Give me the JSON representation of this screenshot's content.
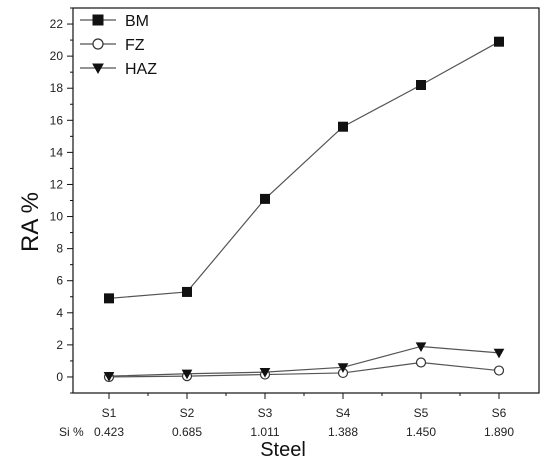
{
  "chart_data": {
    "type": "line",
    "title": "",
    "xlabel": "Steel",
    "ylabel": "RA %",
    "categories": [
      "S1",
      "S2",
      "S3",
      "S4",
      "S5",
      "S6"
    ],
    "si_label": "Si %",
    "si_values": [
      "0.423",
      "0.685",
      "1.011",
      "1.388",
      "1.450",
      "1.890"
    ],
    "ylim": [
      -1,
      23
    ],
    "yticks": [
      0,
      2,
      4,
      6,
      8,
      10,
      12,
      14,
      16,
      18,
      20,
      22
    ],
    "grid": false,
    "legend_position": "top-left",
    "series": [
      {
        "name": "BM",
        "marker": "filled-square",
        "values": [
          4.9,
          5.3,
          11.1,
          15.6,
          18.2,
          20.9
        ]
      },
      {
        "name": "FZ",
        "marker": "open-circle",
        "values": [
          0.0,
          0.05,
          0.15,
          0.25,
          0.9,
          0.4
        ]
      },
      {
        "name": "HAZ",
        "marker": "filled-down-triangle",
        "values": [
          0.05,
          0.2,
          0.3,
          0.6,
          1.9,
          1.5
        ]
      }
    ]
  }
}
